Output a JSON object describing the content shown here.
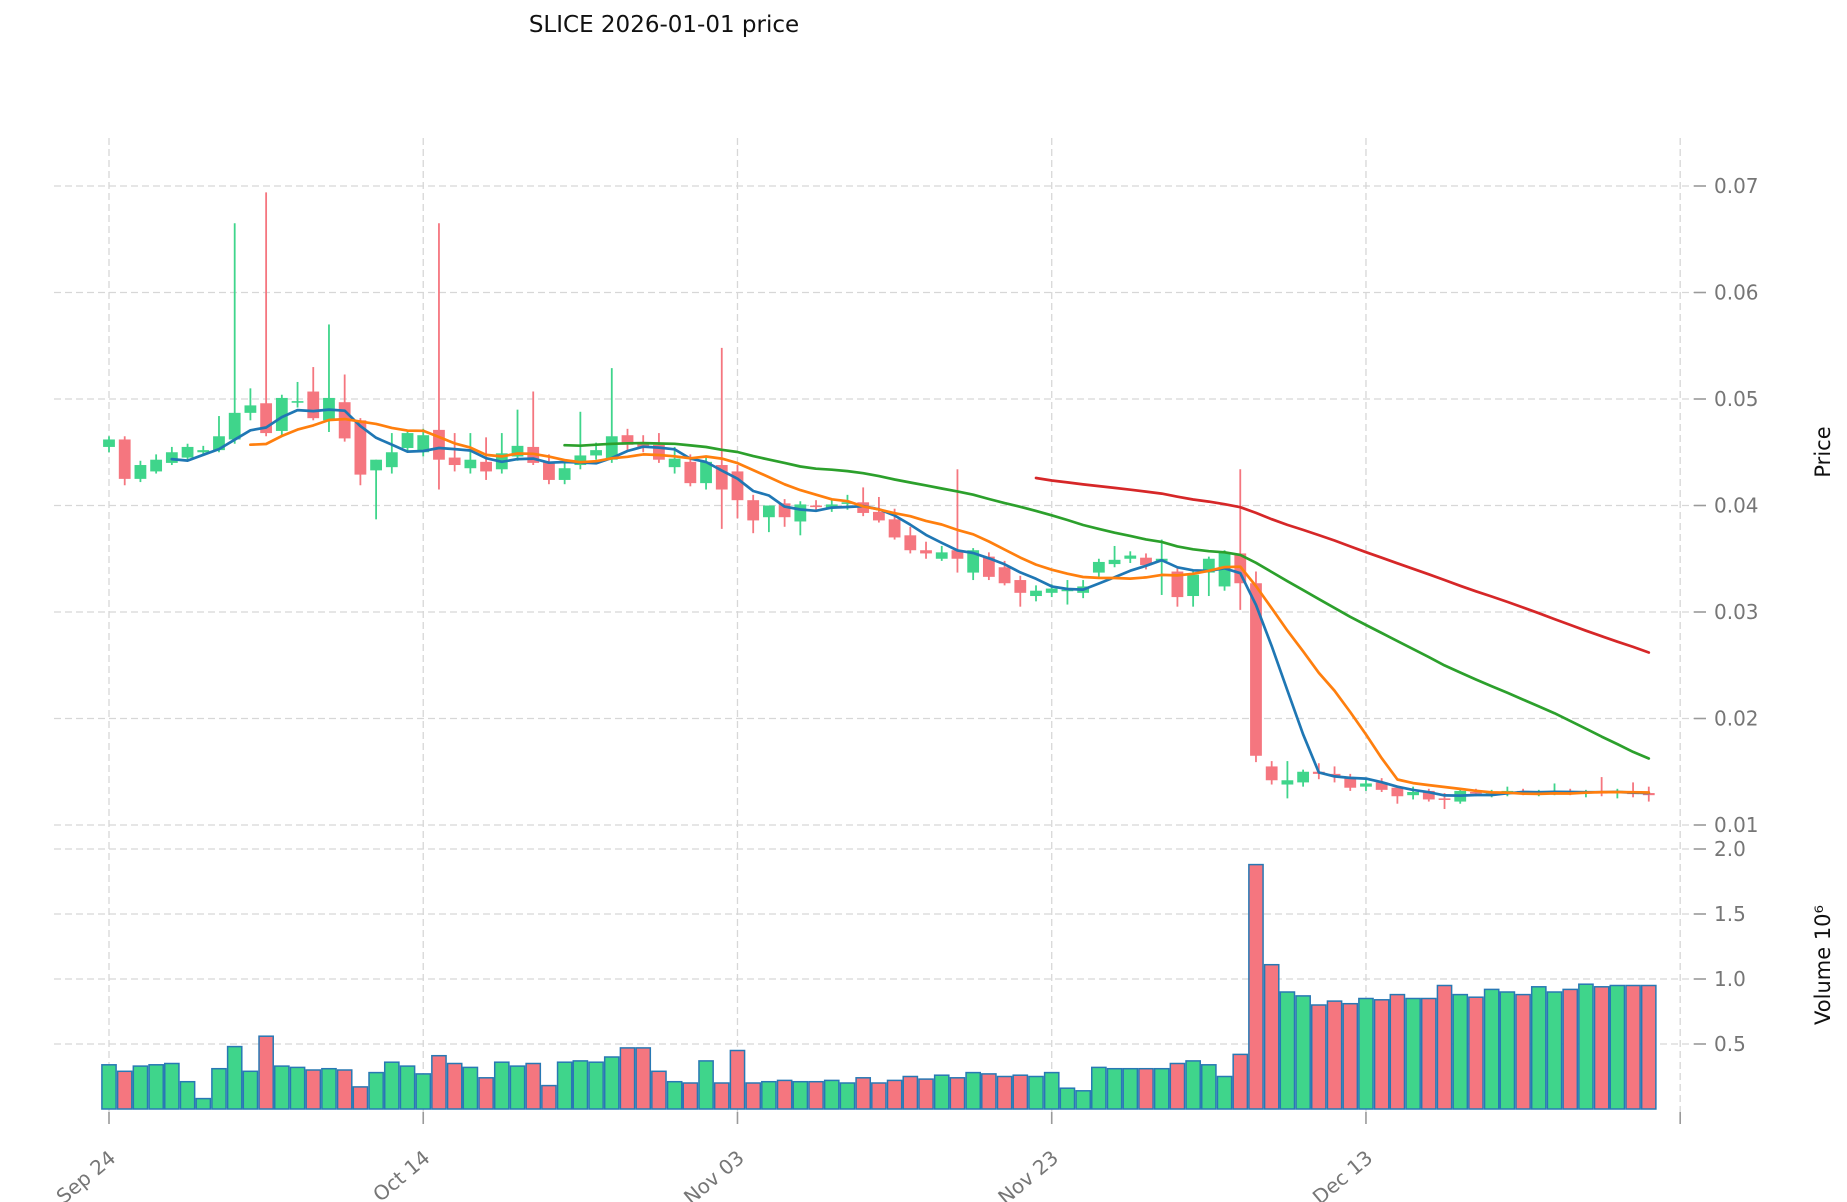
{
  "title": "SLICE  2026-01-01  price",
  "colors": {
    "up": "#3fd58b",
    "down": "#f5767f",
    "volume_edge": "#2878b4",
    "grid": "#d7d7d7",
    "tick_text": "#767676",
    "ma_short": "#1f77b4",
    "ma_mid": "#ff7f0e",
    "ma_long": "#2ca02c",
    "ma_longest": "#d62728"
  },
  "chart_data": {
    "type": "candlestick+volume",
    "symbol": "SLICE",
    "title": "SLICE  2026-01-01  price",
    "grid": true,
    "legend_position": "none",
    "price_axis": {
      "label": "Price",
      "ticks": [
        0.01,
        0.02,
        0.03,
        0.04,
        0.05,
        0.06,
        0.07
      ],
      "range": [
        0.0095,
        0.0745
      ],
      "side": "right"
    },
    "volume_axis": {
      "label": "Volume",
      "unit": "10⁶",
      "label_full": "Volume  10⁶",
      "ticks": [
        0.5,
        1.0,
        1.5,
        2.0
      ],
      "range": [
        0,
        2.2
      ],
      "side": "right"
    },
    "x_axis": {
      "tick_labels": [
        "Sep 24",
        "Oct 14",
        "Nov 03",
        "Nov 23",
        "Dec 13"
      ],
      "tick_days": [
        0,
        20,
        40,
        60,
        80
      ],
      "extra_gridline_day": 100,
      "label_rotation_deg": -40
    },
    "moving_averages": [
      {
        "name": "ma-short",
        "window": 5,
        "color": "#1f77b4"
      },
      {
        "name": "ma-mid",
        "window": 10,
        "color": "#ff7f0e"
      },
      {
        "name": "ma-long",
        "window": 30,
        "color": "#2ca02c"
      },
      {
        "name": "ma-longest",
        "window": 60,
        "color": "#d62728"
      }
    ],
    "dates": [
      "2025-09-24",
      "2025-09-25",
      "2025-09-26",
      "2025-09-27",
      "2025-09-28",
      "2025-09-29",
      "2025-09-30",
      "2025-10-01",
      "2025-10-02",
      "2025-10-03",
      "2025-10-04",
      "2025-10-05",
      "2025-10-06",
      "2025-10-07",
      "2025-10-08",
      "2025-10-09",
      "2025-10-10",
      "2025-10-11",
      "2025-10-12",
      "2025-10-13",
      "2025-10-14",
      "2025-10-15",
      "2025-10-16",
      "2025-10-17",
      "2025-10-18",
      "2025-10-19",
      "2025-10-20",
      "2025-10-21",
      "2025-10-22",
      "2025-10-23",
      "2025-10-24",
      "2025-10-25",
      "2025-10-26",
      "2025-10-27",
      "2025-10-28",
      "2025-10-29",
      "2025-10-30",
      "2025-10-31",
      "2025-11-01",
      "2025-11-02",
      "2025-11-03",
      "2025-11-04",
      "2025-11-05",
      "2025-11-06",
      "2025-11-07",
      "2025-11-08",
      "2025-11-09",
      "2025-11-10",
      "2025-11-11",
      "2025-11-12",
      "2025-11-13",
      "2025-11-14",
      "2025-11-15",
      "2025-11-16",
      "2025-11-17",
      "2025-11-18",
      "2025-11-19",
      "2025-11-20",
      "2025-11-21",
      "2025-11-22",
      "2025-11-23",
      "2025-11-24",
      "2025-11-25",
      "2025-11-26",
      "2025-11-27",
      "2025-11-28",
      "2025-11-29",
      "2025-11-30",
      "2025-12-01",
      "2025-12-02",
      "2025-12-03",
      "2025-12-04",
      "2025-12-05",
      "2025-12-06",
      "2025-12-07",
      "2025-12-08",
      "2025-12-09",
      "2025-12-10",
      "2025-12-11",
      "2025-12-12",
      "2025-12-13",
      "2025-12-14",
      "2025-12-15",
      "2025-12-16",
      "2025-12-17",
      "2025-12-18",
      "2025-12-19",
      "2025-12-20",
      "2025-12-21",
      "2025-12-22",
      "2025-12-23",
      "2025-12-24",
      "2025-12-25",
      "2025-12-26",
      "2025-12-27",
      "2025-12-28",
      "2025-12-29",
      "2025-12-30",
      "2025-12-31"
    ],
    "open": [
      0.0455,
      0.0462,
      0.0425,
      0.0432,
      0.044,
      0.0445,
      0.045,
      0.0452,
      0.0462,
      0.0487,
      0.0496,
      0.047,
      0.0497,
      0.0507,
      0.048,
      0.0497,
      0.048,
      0.0433,
      0.0436,
      0.0454,
      0.045,
      0.0471,
      0.0445,
      0.0435,
      0.0441,
      0.0434,
      0.0446,
      0.0455,
      0.0441,
      0.0424,
      0.0438,
      0.0447,
      0.0443,
      0.0466,
      0.0458,
      0.0457,
      0.0436,
      0.0441,
      0.0421,
      0.0438,
      0.0432,
      0.0405,
      0.0389,
      0.0402,
      0.0385,
      0.04,
      0.0398,
      0.0402,
      0.0403,
      0.0394,
      0.0387,
      0.0372,
      0.0358,
      0.035,
      0.0358,
      0.0337,
      0.0352,
      0.0342,
      0.033,
      0.0315,
      0.0318,
      0.032,
      0.0318,
      0.0337,
      0.0345,
      0.035,
      0.0351,
      0.0348,
      0.0338,
      0.0315,
      0.0337,
      0.0324,
      0.0355,
      0.0327,
      0.0155,
      0.0138,
      0.014,
      0.015,
      0.0148,
      0.0145,
      0.0136,
      0.014,
      0.0135,
      0.0128,
      0.0132,
      0.0125,
      0.0122,
      0.0131,
      0.013,
      0.013,
      0.0132,
      0.013,
      0.0131,
      0.0131,
      0.013,
      0.0131,
      0.013,
      0.0131,
      0.013
    ],
    "high": [
      0.0465,
      0.0465,
      0.0442,
      0.0448,
      0.0455,
      0.0458,
      0.0456,
      0.0484,
      0.0665,
      0.051,
      0.0694,
      0.0504,
      0.0516,
      0.053,
      0.057,
      0.0523,
      0.0482,
      0.0443,
      0.0468,
      0.047,
      0.0472,
      0.0665,
      0.0468,
      0.0468,
      0.0464,
      0.0468,
      0.049,
      0.0507,
      0.0448,
      0.044,
      0.0488,
      0.0459,
      0.0529,
      0.0472,
      0.0466,
      0.0468,
      0.0455,
      0.0448,
      0.0445,
      0.0548,
      0.0438,
      0.041,
      0.04,
      0.0406,
      0.0404,
      0.0405,
      0.0405,
      0.041,
      0.0417,
      0.0408,
      0.0397,
      0.038,
      0.0366,
      0.0362,
      0.0434,
      0.036,
      0.0356,
      0.0348,
      0.0334,
      0.0325,
      0.0326,
      0.033,
      0.033,
      0.035,
      0.0362,
      0.0357,
      0.0355,
      0.0368,
      0.0342,
      0.0338,
      0.0352,
      0.0358,
      0.0434,
      0.0338,
      0.016,
      0.016,
      0.0152,
      0.0158,
      0.0155,
      0.0148,
      0.0143,
      0.0144,
      0.0137,
      0.0136,
      0.0134,
      0.013,
      0.0133,
      0.0134,
      0.0133,
      0.0136,
      0.0134,
      0.0133,
      0.0139,
      0.0134,
      0.0133,
      0.0145,
      0.0134,
      0.014,
      0.0136
    ],
    "low": [
      0.045,
      0.0419,
      0.0422,
      0.043,
      0.0438,
      0.0443,
      0.0448,
      0.045,
      0.0458,
      0.048,
      0.0465,
      0.0466,
      0.0492,
      0.048,
      0.0469,
      0.046,
      0.0419,
      0.0387,
      0.043,
      0.045,
      0.0446,
      0.0415,
      0.0432,
      0.043,
      0.0424,
      0.043,
      0.0442,
      0.0438,
      0.042,
      0.042,
      0.0434,
      0.0443,
      0.044,
      0.0452,
      0.045,
      0.044,
      0.043,
      0.0418,
      0.0415,
      0.0378,
      0.0388,
      0.0374,
      0.0375,
      0.038,
      0.0372,
      0.0395,
      0.0394,
      0.0396,
      0.039,
      0.0384,
      0.0368,
      0.0355,
      0.035,
      0.0348,
      0.0337,
      0.033,
      0.033,
      0.0325,
      0.0305,
      0.031,
      0.0314,
      0.0307,
      0.0313,
      0.0332,
      0.0342,
      0.0346,
      0.034,
      0.0316,
      0.0305,
      0.0305,
      0.0315,
      0.032,
      0.0302,
      0.0159,
      0.0138,
      0.0125,
      0.0136,
      0.0143,
      0.014,
      0.0132,
      0.0132,
      0.0131,
      0.012,
      0.0124,
      0.0122,
      0.0115,
      0.012,
      0.0127,
      0.0126,
      0.0127,
      0.0128,
      0.0127,
      0.0128,
      0.0128,
      0.0126,
      0.0127,
      0.0125,
      0.0126,
      0.0122
    ],
    "close": [
      0.0462,
      0.0425,
      0.0438,
      0.0443,
      0.045,
      0.0455,
      0.0452,
      0.0465,
      0.0487,
      0.0494,
      0.0468,
      0.0501,
      0.0498,
      0.0482,
      0.0501,
      0.0463,
      0.0429,
      0.0443,
      0.045,
      0.0468,
      0.0466,
      0.0443,
      0.0438,
      0.0443,
      0.0432,
      0.0449,
      0.0456,
      0.044,
      0.0424,
      0.0435,
      0.0447,
      0.0452,
      0.0465,
      0.0457,
      0.0455,
      0.0443,
      0.0444,
      0.0421,
      0.0441,
      0.0415,
      0.0405,
      0.0386,
      0.04,
      0.0389,
      0.0401,
      0.0399,
      0.0401,
      0.0403,
      0.0393,
      0.0386,
      0.037,
      0.0358,
      0.0355,
      0.0356,
      0.035,
      0.0358,
      0.0333,
      0.0327,
      0.0318,
      0.032,
      0.0322,
      0.0321,
      0.0324,
      0.0347,
      0.0349,
      0.0353,
      0.0344,
      0.035,
      0.0314,
      0.0335,
      0.035,
      0.0356,
      0.0327,
      0.0165,
      0.0142,
      0.0142,
      0.015,
      0.0148,
      0.0146,
      0.0135,
      0.0139,
      0.0133,
      0.0127,
      0.0131,
      0.0124,
      0.0124,
      0.0132,
      0.013,
      0.0131,
      0.0132,
      0.013,
      0.0131,
      0.0132,
      0.013,
      0.0131,
      0.013,
      0.0132,
      0.0129,
      0.0128
    ],
    "volume_millions": [
      0.34,
      0.29,
      0.33,
      0.34,
      0.35,
      0.21,
      0.08,
      0.31,
      0.48,
      0.29,
      0.56,
      0.33,
      0.32,
      0.3,
      0.31,
      0.3,
      0.17,
      0.28,
      0.36,
      0.33,
      0.27,
      0.41,
      0.35,
      0.32,
      0.24,
      0.36,
      0.33,
      0.35,
      0.18,
      0.36,
      0.37,
      0.36,
      0.4,
      0.47,
      0.47,
      0.29,
      0.21,
      0.2,
      0.37,
      0.2,
      0.45,
      0.2,
      0.21,
      0.22,
      0.21,
      0.21,
      0.22,
      0.2,
      0.24,
      0.2,
      0.22,
      0.25,
      0.23,
      0.26,
      0.24,
      0.28,
      0.27,
      0.25,
      0.26,
      0.25,
      0.28,
      0.16,
      0.14,
      0.32,
      0.31,
      0.31,
      0.31,
      0.31,
      0.35,
      0.37,
      0.34,
      0.25,
      0.42,
      1.88,
      1.11,
      0.9,
      0.87,
      0.8,
      0.83,
      0.81,
      0.85,
      0.84,
      0.88,
      0.85,
      0.85,
      0.95,
      0.88,
      0.86,
      0.92,
      0.9,
      0.88,
      0.94,
      0.9,
      0.92,
      0.96,
      0.94,
      0.95,
      0.95,
      0.95
    ]
  }
}
